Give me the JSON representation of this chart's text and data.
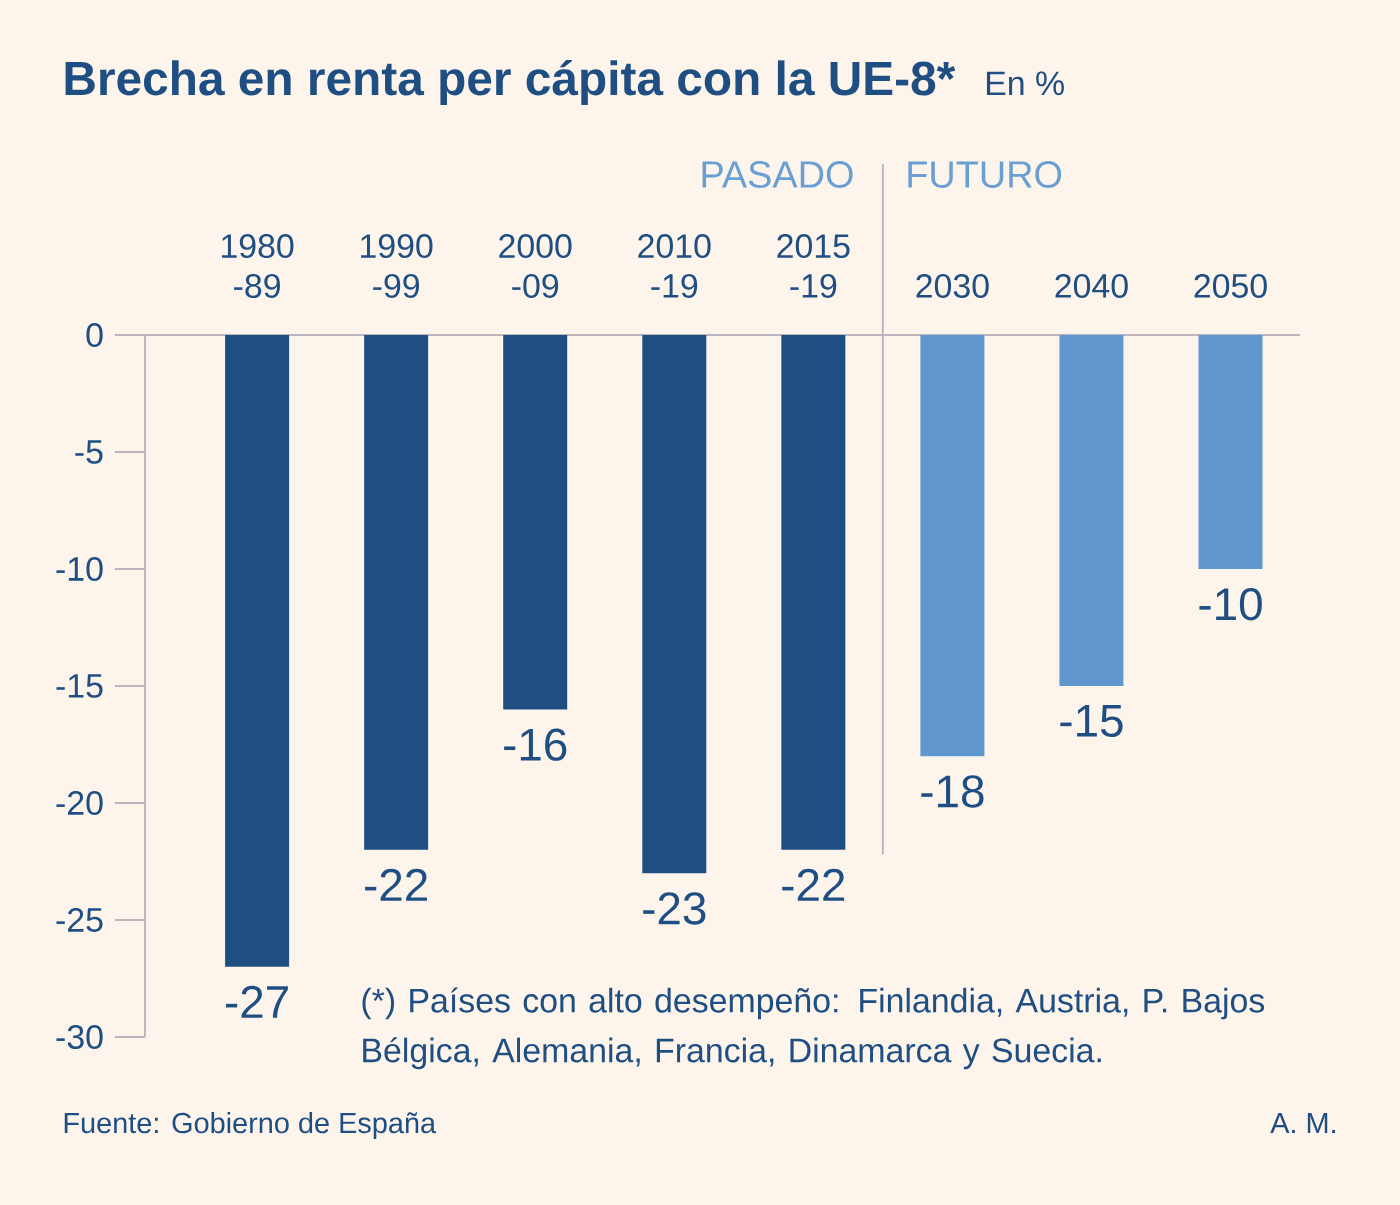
{
  "chart_data": {
    "type": "bar",
    "title": "Brecha en renta per cápita con la UE-8*",
    "subtitle": "En %",
    "categories": [
      "1980 -89",
      "1990 -99",
      "2000 -09",
      "2010 -19",
      "2015 -19",
      "2030",
      "2040",
      "2050"
    ],
    "values": [
      -27,
      -22,
      -16,
      -23,
      -22,
      -18,
      -15,
      -10
    ],
    "colors": [
      "#1f4f82",
      "#1f4f82",
      "#1f4f82",
      "#1f4f82",
      "#1f4f82",
      "#6097cf",
      "#6097cf",
      "#6097cf"
    ],
    "ylim": [
      -30,
      0
    ],
    "yticks": [
      0,
      -5,
      -10,
      -15,
      -20,
      -25,
      -30
    ],
    "data_labels": true,
    "annotations": [
      "PASADO",
      "FUTURO",
      "(*) Países con alto desempeño: Finlandia, Austria, P. Bajos Bélgica, Alemania, Francia, Dinamarca y Suecia.",
      "Fuente: Gobierno de España",
      "A. M."
    ]
  }
}
